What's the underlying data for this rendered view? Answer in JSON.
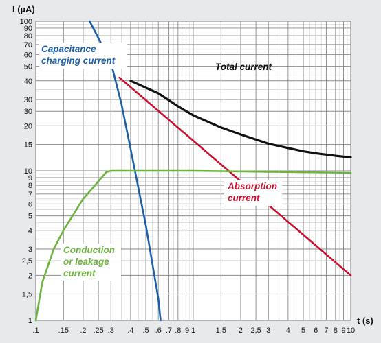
{
  "chart_data": {
    "type": "line",
    "x_scale": "log",
    "y_scale": "log",
    "xlim": [
      0.1,
      10
    ],
    "ylim": [
      1,
      100
    ],
    "grid": true,
    "xlabel": "t (s)",
    "ylabel": "I (µA)",
    "x_ticks": [
      ".1",
      ".15",
      ".2",
      ".25",
      ".3",
      ".4",
      ".5",
      ".6",
      ".7",
      ".8",
      ".9",
      "1",
      "1,5",
      "2",
      "2,5",
      "3",
      "4",
      "5",
      "6",
      "7",
      "8",
      "9",
      "10"
    ],
    "y_ticks": [
      "1",
      "1,5",
      "2",
      "2,5",
      "3",
      "4",
      "5",
      "6",
      "7",
      "8",
      "9",
      "10",
      "15",
      "20",
      "30",
      "30",
      "40",
      "50",
      "60",
      "70",
      "80",
      "90",
      "100"
    ],
    "series": [
      {
        "name": "Capacitance charging current",
        "color": "#1a5fa8",
        "x": [
          0.22,
          0.3,
          0.35,
          0.4,
          0.5,
          0.6,
          0.62
        ],
        "y": [
          100,
          53,
          28,
          14,
          4.3,
          1.4,
          1
        ]
      },
      {
        "name": "Total current",
        "color": "#111111",
        "x": [
          0.4,
          0.6,
          0.8,
          1,
          1.5,
          2,
          3,
          4,
          5,
          6,
          8,
          10
        ],
        "y": [
          40,
          33,
          27,
          23.5,
          19.5,
          17.5,
          15.2,
          14.2,
          13.5,
          13.1,
          12.6,
          12.3
        ]
      },
      {
        "name": "Absorption current",
        "color": "#c8102e",
        "x": [
          0.34,
          10
        ],
        "y": [
          42,
          2
        ]
      },
      {
        "name": "Conduction or leakage current",
        "color": "#6cb33f",
        "x": [
          0.1,
          0.11,
          0.13,
          0.15,
          0.2,
          0.25,
          0.28,
          0.3,
          0.4,
          1,
          10
        ],
        "y": [
          1,
          1.8,
          3,
          4,
          6.5,
          8.5,
          9.8,
          10,
          10,
          10,
          9.7
        ]
      }
    ]
  }
}
